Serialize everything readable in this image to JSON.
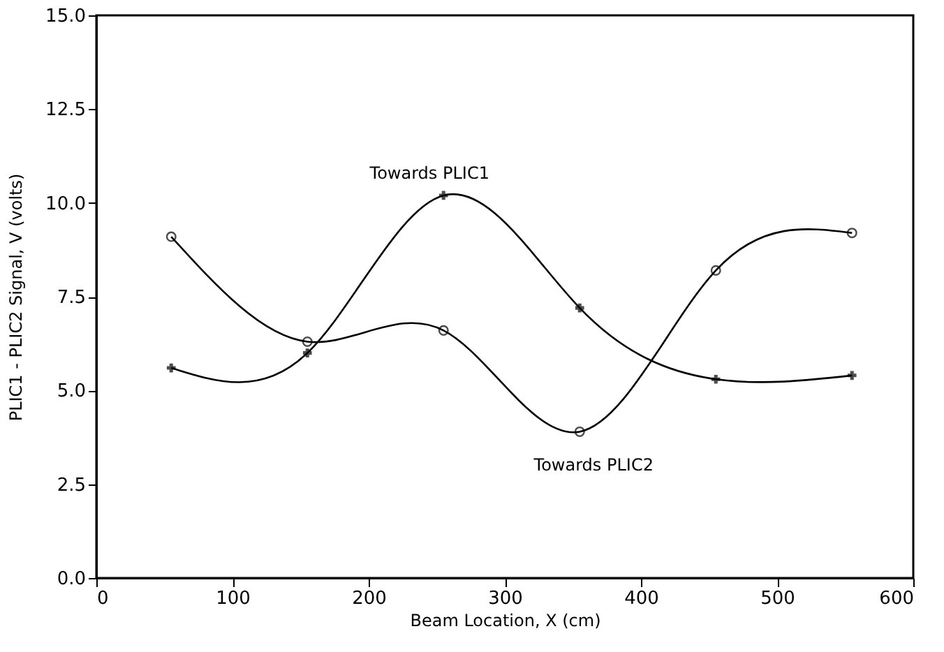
{
  "chart_data": {
    "type": "line",
    "xlabel": "Beam Location, X (cm)",
    "ylabel": "PLIC1 - PLIC2 Signal, V (volts)",
    "x": [
      55,
      155,
      255,
      355,
      455,
      555
    ],
    "series": [
      {
        "name": "Towards PLIC1",
        "color": "#000000",
        "marker": "cross",
        "values": [
          5.6,
          6.0,
          10.2,
          7.2,
          5.3,
          5.4
        ]
      },
      {
        "name": "Towards PLIC2",
        "color": "#000000",
        "marker": "circle",
        "values": [
          9.1,
          6.3,
          6.6,
          3.9,
          8.2,
          9.2
        ]
      }
    ],
    "xlim": [
      0,
      600
    ],
    "xticks": [
      0,
      100,
      200,
      300,
      400,
      500,
      600
    ],
    "ylim": [
      0,
      15
    ],
    "yticks": [
      {
        "value": 0,
        "label": "0.0"
      },
      2.5,
      {
        "value": 5,
        "label": "5.0"
      },
      7.5,
      {
        "value": 10,
        "label": "10.0"
      },
      12.5,
      {
        "value": 15,
        "label": "15.0"
      }
    ],
    "grid": false,
    "line_style": "solid"
  }
}
